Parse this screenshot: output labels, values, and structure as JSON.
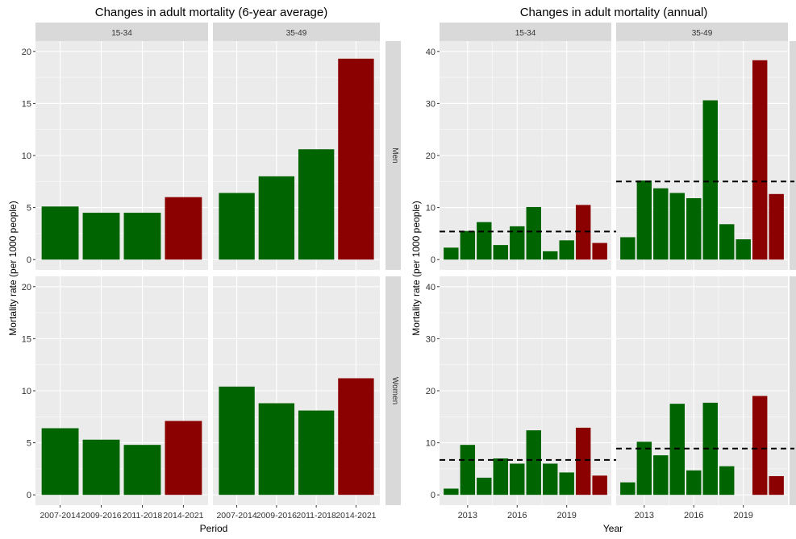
{
  "colors": {
    "green": "#006400",
    "red": "#8b0000",
    "panel_bg": "#ebebeb",
    "strip_bg": "#d9d9d9",
    "grid_major": "#ffffff",
    "text": "#333333",
    "title_text": "#000000",
    "reference_line": "#000000"
  },
  "chart_data": [
    {
      "type": "bar",
      "title": "Changes in adult mortality (6-year average)",
      "xlabel": "Period",
      "ylabel": "Mortality rate (per 1000 people)",
      "ylim": [
        0,
        20
      ],
      "yticks": [
        0,
        5,
        10,
        15,
        20
      ],
      "grid": true,
      "facets": {
        "columns": [
          "15-34",
          "35-49"
        ],
        "rows": [
          "Men",
          "Women"
        ]
      },
      "categories": [
        "2007-2014",
        "2009-2016",
        "2011-2018",
        "2014-2021"
      ],
      "bar_colors": [
        "green",
        "green",
        "green",
        "red"
      ],
      "panels": [
        {
          "row": "Men",
          "column": "15-34",
          "values": [
            5.1,
            4.5,
            4.5,
            6.0
          ]
        },
        {
          "row": "Men",
          "column": "35-49",
          "values": [
            6.4,
            8.0,
            10.6,
            19.3
          ]
        },
        {
          "row": "Women",
          "column": "15-34",
          "values": [
            6.4,
            5.3,
            4.8,
            7.1
          ]
        },
        {
          "row": "Women",
          "column": "35-49",
          "values": [
            10.4,
            8.8,
            8.1,
            11.2
          ]
        }
      ]
    },
    {
      "type": "bar",
      "title": "Changes in adult mortality (annual)",
      "xlabel": "Year",
      "ylabel": "Mortality rate (per 1000 people)",
      "ylim": [
        0,
        40
      ],
      "yticks": [
        0,
        10,
        20,
        30,
        40
      ],
      "xlim": [
        2011.3,
        2021.7
      ],
      "xticks": [
        2013,
        2016,
        2019
      ],
      "grid": true,
      "facets": {
        "columns": [
          "15-34",
          "35-49"
        ],
        "rows": [
          "Men",
          "Women"
        ]
      },
      "x": [
        2012,
        2013,
        2014,
        2015,
        2016,
        2017,
        2018,
        2019,
        2020,
        2021
      ],
      "bar_colors": [
        "green",
        "green",
        "green",
        "green",
        "green",
        "green",
        "green",
        "green",
        "red",
        "red"
      ],
      "panels": [
        {
          "row": "Men",
          "column": "15-34",
          "values": [
            2.3,
            5.5,
            7.2,
            2.8,
            6.4,
            10.1,
            1.6,
            3.7,
            10.5,
            3.2
          ],
          "reference_line": 5.4
        },
        {
          "row": "Men",
          "column": "35-49",
          "values": [
            4.3,
            15.2,
            13.7,
            12.8,
            11.8,
            30.6,
            6.8,
            3.9,
            38.3,
            12.6
          ],
          "reference_line": 15.0
        },
        {
          "row": "Women",
          "column": "15-34",
          "values": [
            1.2,
            9.6,
            3.3,
            7.0,
            6.0,
            12.4,
            6.0,
            4.3,
            12.9,
            3.7
          ],
          "reference_line": 6.7
        },
        {
          "row": "Women",
          "column": "35-49",
          "values": [
            2.4,
            10.2,
            7.6,
            17.5,
            4.7,
            17.7,
            5.5,
            null,
            19.0,
            3.6
          ],
          "reference_line": 8.9
        }
      ]
    }
  ]
}
